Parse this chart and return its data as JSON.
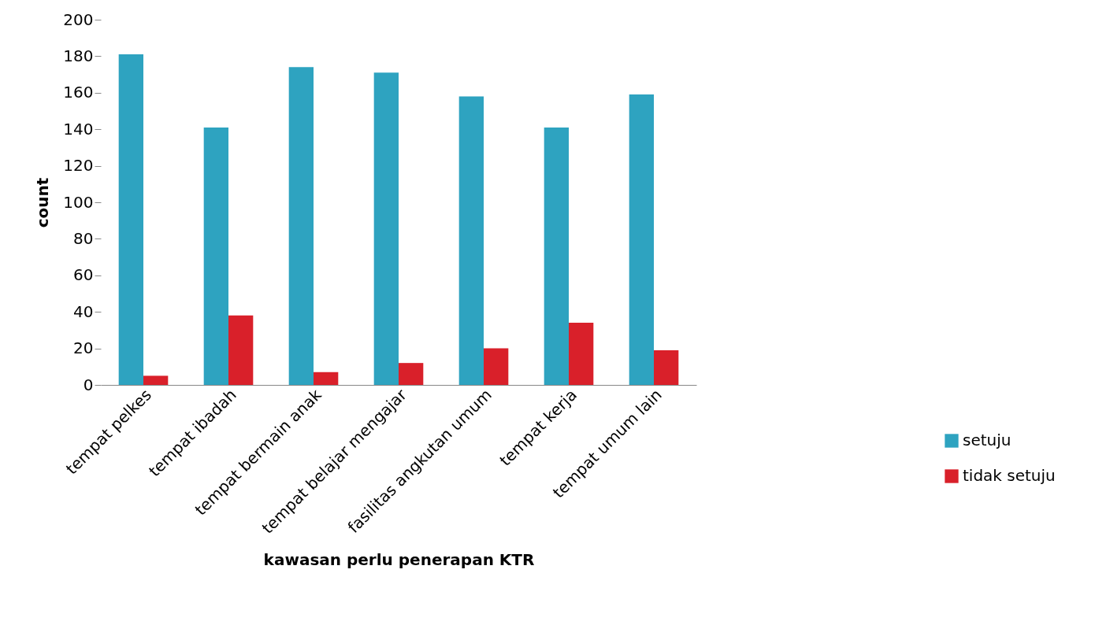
{
  "chart_data": {
    "type": "bar",
    "xlabel": "kawasan perlu penerapan KTR",
    "ylabel": "count",
    "categories": [
      "tempat pelkes",
      "tempat ibadah",
      "tempat bermain anak",
      "tempat belajar mengajar",
      "fasilitas angkutan umum",
      "tempat kerja",
      "tempat umum lain"
    ],
    "series": [
      {
        "name": "setuju",
        "color": "#2ea3c0",
        "values": [
          181,
          141,
          174,
          171,
          158,
          141,
          159
        ]
      },
      {
        "name": "tidak setuju",
        "color": "#d9202a",
        "values": [
          5,
          38,
          7,
          12,
          20,
          34,
          19
        ]
      }
    ],
    "ylim": [
      0,
      200
    ],
    "yticks": [
      0,
      20,
      40,
      60,
      80,
      100,
      120,
      140,
      160,
      180,
      200
    ],
    "grid": false,
    "legend": "right"
  }
}
